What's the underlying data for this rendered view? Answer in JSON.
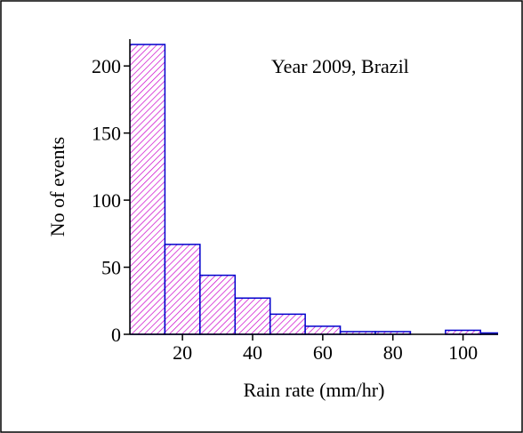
{
  "chart_data": {
    "type": "histogram",
    "annotation": "Year 2009, Brazil",
    "xlabel": "Rain rate (mm/hr)",
    "ylabel": "No of events",
    "bins": [
      5,
      15,
      25,
      35,
      45,
      55,
      65,
      75,
      85,
      95,
      105,
      115
    ],
    "values": [
      216,
      67,
      44,
      27,
      15,
      6,
      2,
      2,
      0,
      3,
      1
    ],
    "color": "#cc00cc",
    "edgecolor": "#0000cc",
    "xlim": [
      5,
      110
    ],
    "ylim": [
      0,
      220
    ],
    "xticks": [
      20,
      40,
      60,
      80,
      100
    ],
    "yticks": [
      0,
      50,
      100,
      150,
      200
    ]
  }
}
